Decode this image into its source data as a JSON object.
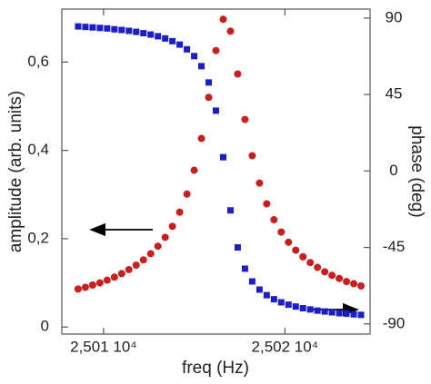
{
  "chart_data": {
    "type": "scatter",
    "xlabel": "freq (Hz)",
    "ylabel": "amplitude (arb. units)",
    "y2label": "phase (deg)",
    "x": [
      25008.6,
      25009.0,
      25009.4,
      25009.8,
      25010.2,
      25010.6,
      25011.0,
      25011.4,
      25011.8,
      25012.2,
      25012.6,
      25013.0,
      25013.4,
      25013.8,
      25014.2,
      25014.6,
      25015.0,
      25015.4,
      25015.8,
      25016.2,
      25016.6,
      25017.0,
      25017.4,
      25017.8,
      25018.2,
      25018.6,
      25019.0,
      25019.4,
      25019.8,
      25020.2,
      25020.6,
      25021.0,
      25021.4,
      25021.8,
      25022.2,
      25022.6,
      25023.0,
      25023.4,
      25023.8,
      25024.2
    ],
    "series": [
      {
        "color": "#c81e1e",
        "marker": "circle",
        "values": [
          0.086,
          0.09,
          0.095,
          0.1,
          0.106,
          0.113,
          0.121,
          0.13,
          0.14,
          0.152,
          0.166,
          0.183,
          0.203,
          0.228,
          0.26,
          0.301,
          0.355,
          0.427,
          0.52,
          0.626,
          0.697,
          0.67,
          0.573,
          0.47,
          0.388,
          0.326,
          0.279,
          0.243,
          0.215,
          0.192,
          0.174,
          0.159,
          0.146,
          0.135,
          0.125,
          0.117,
          0.11,
          0.103,
          0.098,
          0.093
        ]
      },
      {
        "color": "#1e1ec8",
        "marker": "square",
        "axis": "y2",
        "values": [
          85.1,
          84.8,
          84.5,
          84.2,
          83.9,
          83.4,
          83.0,
          82.5,
          81.9,
          81.1,
          80.3,
          79.3,
          78.0,
          76.4,
          74.4,
          71.6,
          67.6,
          61.7,
          52.1,
          35.5,
          8.1,
          -23.2,
          -45.0,
          -57.5,
          -65.0,
          -69.8,
          -73.1,
          -75.5,
          -77.3,
          -78.7,
          -79.8,
          -80.8,
          -81.5,
          -82.2,
          -82.7,
          -83.2,
          -83.7,
          -84.0,
          -84.4,
          -84.7
        ]
      }
    ],
    "xlim": [
      25007.7,
      25024.7
    ],
    "xticks": [
      {
        "value": 25010,
        "label": "2,501 10⁴"
      },
      {
        "value": 25020,
        "label": "2,502 10⁴"
      }
    ],
    "ylim": [
      -0.016,
      0.72
    ],
    "yticks": [
      0,
      {
        "value": 0.2,
        "label": "0,2"
      },
      {
        "value": 0.4,
        "label": "0,4"
      },
      {
        "value": 0.6,
        "label": "0,6"
      }
    ],
    "y2lim": [
      -96,
      95.3
    ],
    "y2ticks": [
      -90,
      -45,
      0,
      45,
      90
    ]
  }
}
